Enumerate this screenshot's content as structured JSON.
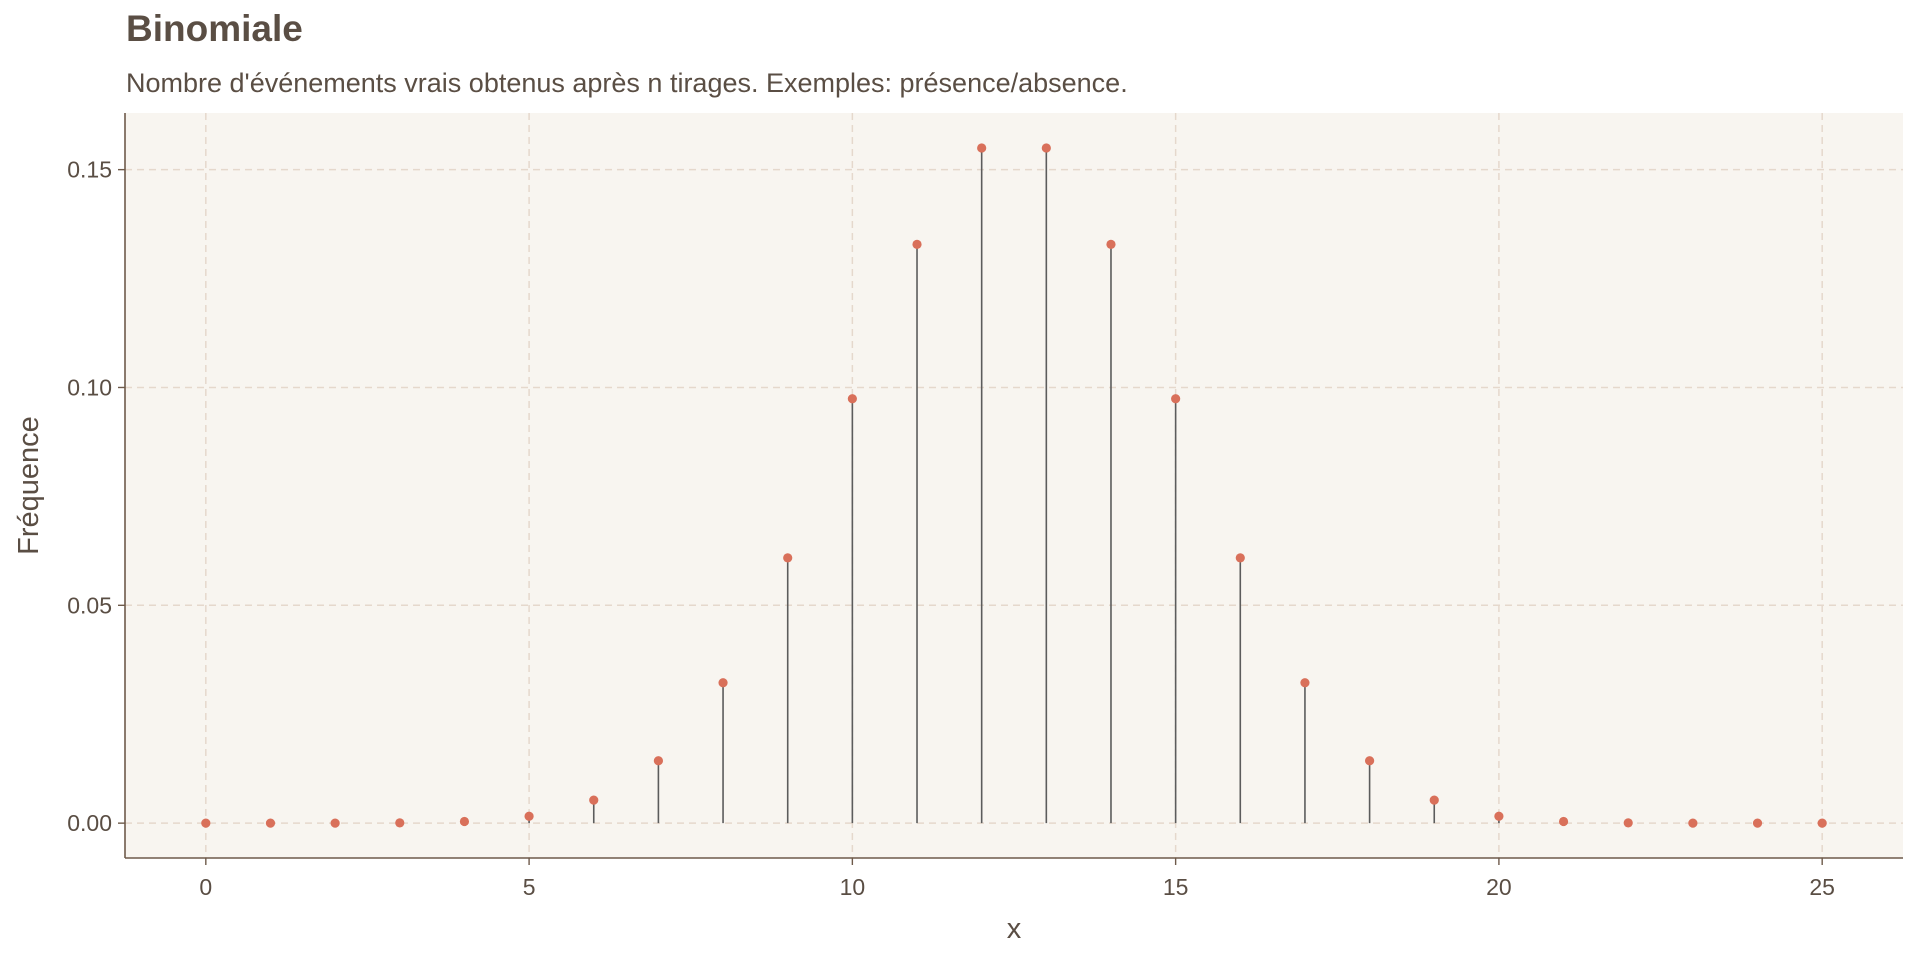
{
  "chart_data": {
    "type": "lollipop",
    "title": "Binomiale",
    "subtitle": "Nombre d'événements vrais obtenus après n tirages. Exemples: présence/absence.",
    "xlabel": "x",
    "ylabel": "Fréquence",
    "xlim": [
      -1.25,
      26.25
    ],
    "ylim": [
      -0.008,
      0.163
    ],
    "xticks": [
      0,
      5,
      10,
      15,
      20,
      25
    ],
    "xtick_labels": [
      "0",
      "5",
      "10",
      "15",
      "20",
      "25"
    ],
    "yticks": [
      0,
      0.05,
      0.1,
      0.15
    ],
    "ytick_labels": [
      "0.00",
      "0.05",
      "0.10",
      "0.15"
    ],
    "grid": true,
    "x": [
      0,
      1,
      2,
      3,
      4,
      5,
      6,
      7,
      8,
      9,
      10,
      11,
      12,
      13,
      14,
      15,
      16,
      17,
      18,
      19,
      20,
      21,
      22,
      23,
      24,
      25
    ],
    "y": [
      2.98e-08,
      7.45e-07,
      8.94e-06,
      6.85e-05,
      0.000377,
      0.00158,
      0.00528,
      0.01433,
      0.03223,
      0.06089,
      0.09742,
      0.13284,
      0.15498,
      0.15498,
      0.13284,
      0.09742,
      0.06089,
      0.03223,
      0.01433,
      0.00528,
      0.00158,
      0.000377,
      6.85e-05,
      8.94e-06,
      7.45e-07,
      2.98e-08
    ]
  },
  "colors": {
    "panel_background": "#f8f5f0",
    "grid": "#e5d8cc",
    "axis_line": "#6e5a4a",
    "stem": "#5c5c5c",
    "point": "#d9705a",
    "text": "#5a4e44"
  }
}
